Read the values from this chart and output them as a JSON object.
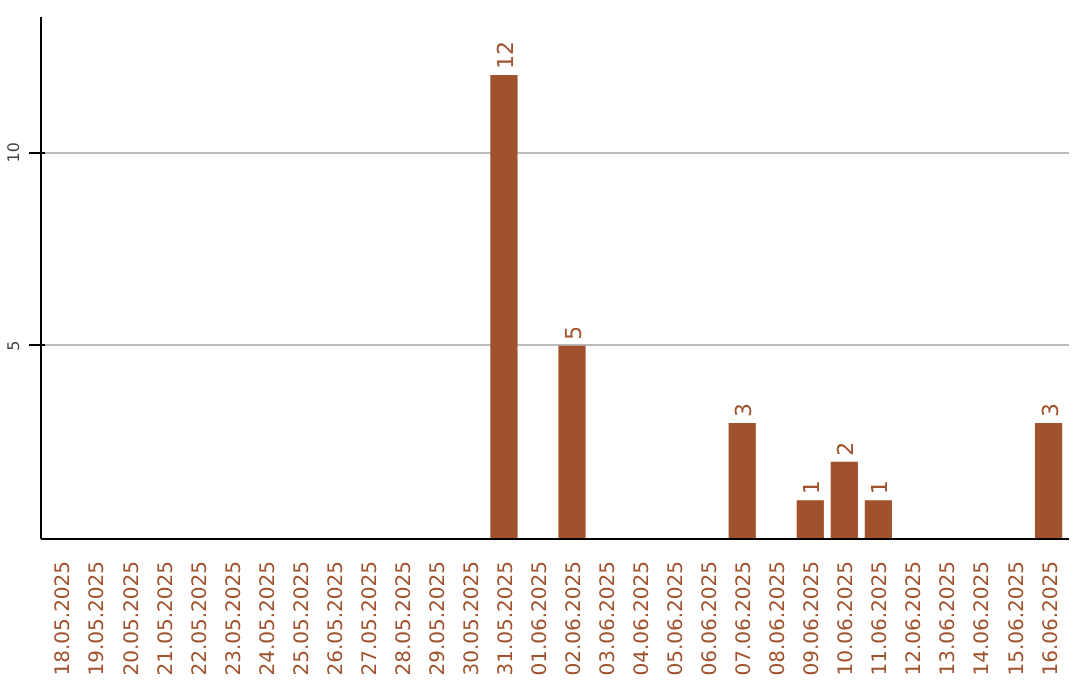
{
  "chart_data": {
    "type": "bar",
    "categories": [
      "18.05.2025",
      "19.05.2025",
      "20.05.2025",
      "21.05.2025",
      "22.05.2025",
      "23.05.2025",
      "24.05.2025",
      "25.05.2025",
      "26.05.2025",
      "27.05.2025",
      "28.05.2025",
      "29.05.2025",
      "30.05.2025",
      "31.05.2025",
      "01.06.2025",
      "02.06.2025",
      "03.06.2025",
      "04.06.2025",
      "05.06.2025",
      "06.06.2025",
      "07.06.2025",
      "08.06.2025",
      "09.06.2025",
      "10.06.2025",
      "11.06.2025",
      "12.06.2025",
      "13.06.2025",
      "14.06.2025",
      "15.06.2025",
      "16.06.2025"
    ],
    "values": [
      0,
      0,
      0,
      0,
      0,
      0,
      0,
      0,
      0,
      0,
      0,
      0,
      0,
      12,
      0,
      5,
      0,
      0,
      0,
      0,
      3,
      0,
      1,
      2,
      1,
      0,
      0,
      0,
      0,
      3
    ],
    "value_labels": [
      null,
      null,
      null,
      null,
      null,
      null,
      null,
      null,
      null,
      null,
      null,
      null,
      null,
      "12",
      null,
      "5",
      null,
      null,
      null,
      null,
      "3",
      null,
      "1",
      "2",
      "1",
      null,
      null,
      null,
      null,
      "3"
    ],
    "color": "#a0522d",
    "ylim": [
      0,
      13.5
    ],
    "yticks": [
      5,
      10
    ],
    "grid": "y"
  }
}
